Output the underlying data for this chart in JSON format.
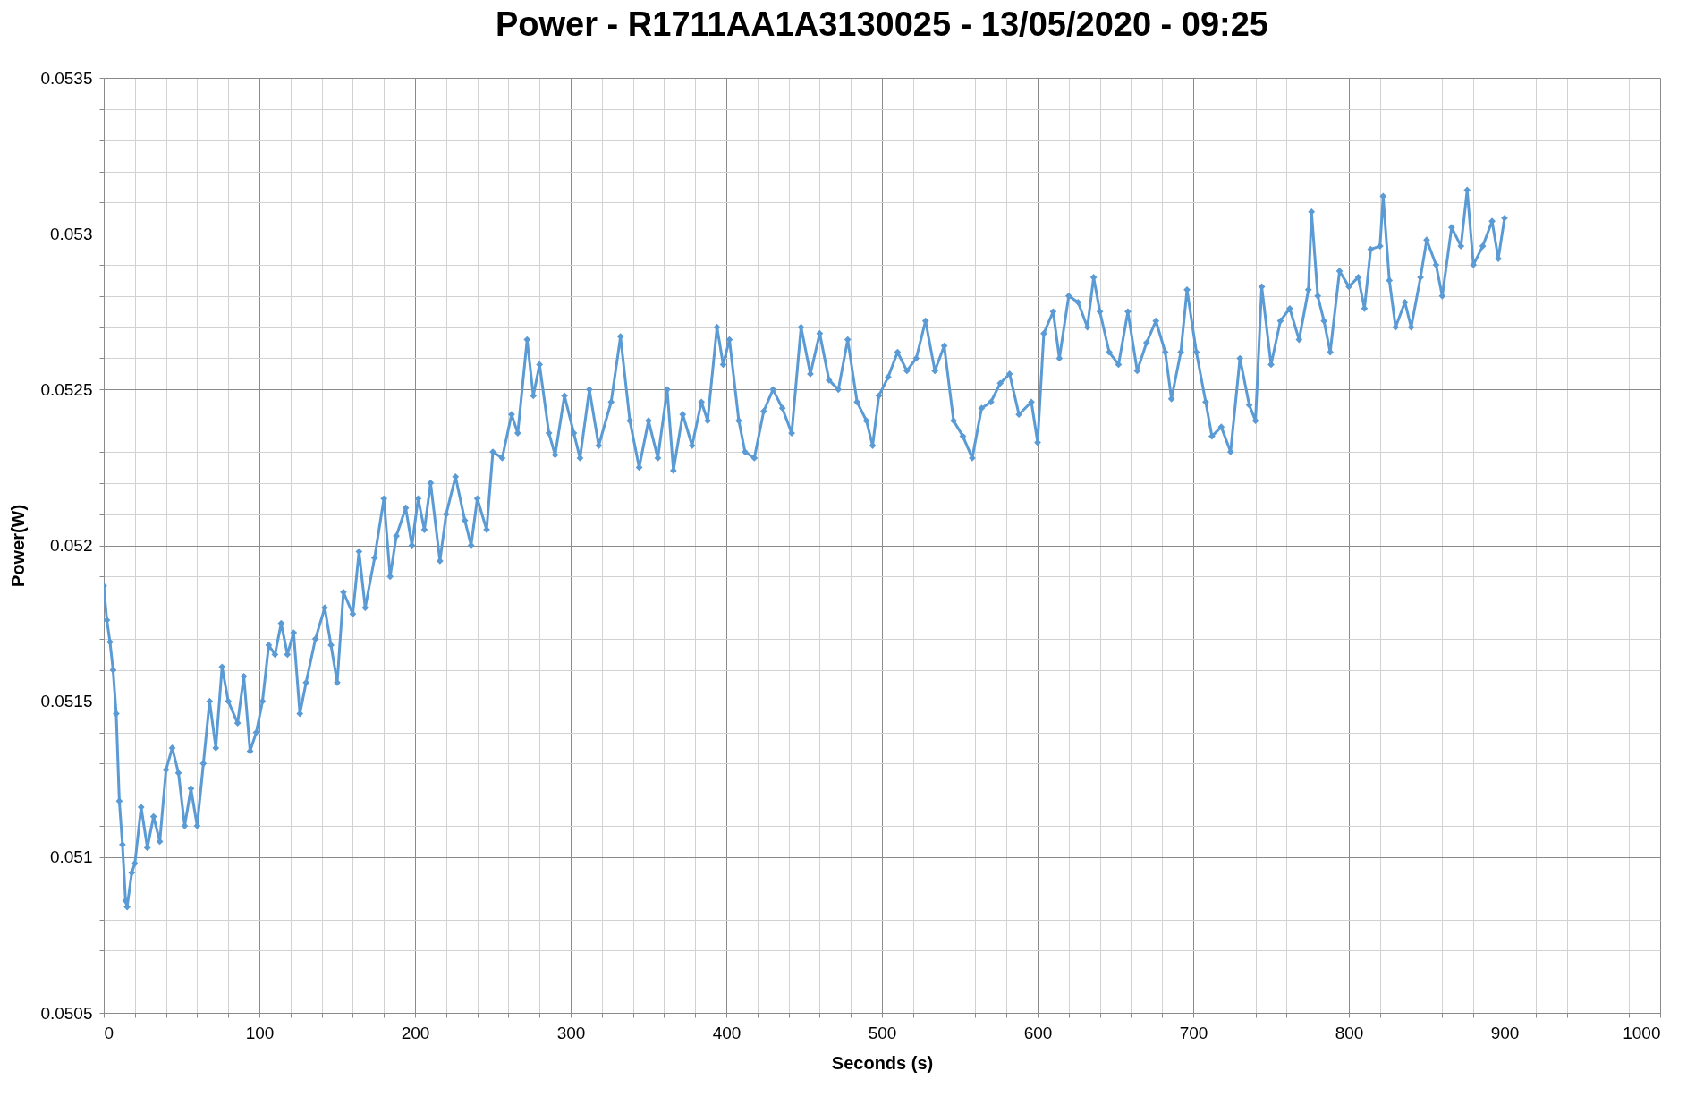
{
  "chart_data": {
    "type": "line",
    "title": "Power - R1711AA1A3130025 - 13/05/2020 - 09:25",
    "xlabel": "Seconds (s)",
    "ylabel": "Power(W)",
    "xlim": [
      0,
      1000
    ],
    "ylim": [
      0.0505,
      0.0535
    ],
    "xticks": [
      0,
      {
        "value": 20,
        "label": null
      },
      {
        "value": 40,
        "label": null
      },
      {
        "value": 60,
        "label": null
      },
      {
        "value": 80,
        "label": null
      },
      100,
      {
        "value": 120,
        "label": null
      },
      {
        "value": 140,
        "label": null
      },
      {
        "value": 160,
        "label": null
      },
      {
        "value": 180,
        "label": null
      },
      200,
      {
        "value": 220,
        "label": null
      },
      {
        "value": 240,
        "label": null
      },
      {
        "value": 260,
        "label": null
      },
      {
        "value": 280,
        "label": null
      },
      300,
      {
        "value": 320,
        "label": null
      },
      {
        "value": 340,
        "label": null
      },
      {
        "value": 360,
        "label": null
      },
      {
        "value": 380,
        "label": null
      },
      400,
      {
        "value": 420,
        "label": null
      },
      {
        "value": 440,
        "label": null
      },
      {
        "value": 460,
        "label": null
      },
      {
        "value": 480,
        "label": null
      },
      500,
      {
        "value": 520,
        "label": null
      },
      {
        "value": 540,
        "label": null
      },
      {
        "value": 560,
        "label": null
      },
      {
        "value": 580,
        "label": null
      },
      600,
      {
        "value": 620,
        "label": null
      },
      {
        "value": 640,
        "label": null
      },
      {
        "value": 660,
        "label": null
      },
      {
        "value": 680,
        "label": null
      },
      700,
      {
        "value": 720,
        "label": null
      },
      {
        "value": 740,
        "label": null
      },
      {
        "value": 760,
        "label": null
      },
      {
        "value": 780,
        "label": null
      },
      800,
      {
        "value": 820,
        "label": null
      },
      {
        "value": 840,
        "label": null
      },
      {
        "value": 860,
        "label": null
      },
      {
        "value": 880,
        "label": null
      },
      900,
      {
        "value": 920,
        "label": null
      },
      {
        "value": 940,
        "label": null
      },
      {
        "value": 960,
        "label": null
      },
      {
        "value": 980,
        "label": null
      },
      1000
    ],
    "yticks": [
      0.0505,
      {
        "value": 0.0506,
        "label": null
      },
      {
        "value": 0.0507,
        "label": null
      },
      {
        "value": 0.0508,
        "label": null
      },
      {
        "value": 0.0509,
        "label": null
      },
      0.051,
      {
        "value": 0.0511,
        "label": null
      },
      {
        "value": 0.0512,
        "label": null
      },
      {
        "value": 0.0513,
        "label": null
      },
      {
        "value": 0.0514,
        "label": null
      },
      0.0515,
      {
        "value": 0.0516,
        "label": null
      },
      {
        "value": 0.0517,
        "label": null
      },
      {
        "value": 0.0518,
        "label": null
      },
      {
        "value": 0.0519,
        "label": null
      },
      0.052,
      {
        "value": 0.0521,
        "label": null
      },
      {
        "value": 0.0522,
        "label": null
      },
      {
        "value": 0.0523,
        "label": null
      },
      {
        "value": 0.0524,
        "label": null
      },
      0.0525,
      {
        "value": 0.0526,
        "label": null
      },
      {
        "value": 0.0527,
        "label": null
      },
      {
        "value": 0.0528,
        "label": null
      },
      {
        "value": 0.0529,
        "label": null
      },
      0.053,
      {
        "value": 0.0531,
        "label": null
      },
      {
        "value": 0.0532,
        "label": null
      },
      {
        "value": 0.0533,
        "label": null
      },
      {
        "value": 0.0534,
        "label": null
      },
      0.0535
    ],
    "grid": true,
    "marker": "diamond",
    "line_style": "solid",
    "x": [
      0,
      2,
      4,
      6,
      8,
      10,
      12,
      14,
      15,
      18,
      20,
      24,
      28,
      32,
      36,
      40,
      44,
      48,
      52,
      56,
      60,
      64,
      68,
      72,
      76,
      80,
      86,
      90,
      94,
      98,
      102,
      106,
      110,
      114,
      118,
      122,
      126,
      130,
      136,
      142,
      146,
      150,
      154,
      160,
      164,
      168,
      174,
      180,
      184,
      188,
      194,
      198,
      202,
      206,
      210,
      216,
      220,
      226,
      232,
      236,
      240,
      246,
      250,
      256,
      262,
      266,
      272,
      276,
      280,
      286,
      290,
      296,
      302,
      306,
      312,
      318,
      326,
      332,
      338,
      344,
      350,
      356,
      362,
      366,
      372,
      378,
      384,
      388,
      394,
      398,
      402,
      408,
      412,
      418,
      424,
      430,
      436,
      442,
      448,
      454,
      460,
      466,
      472,
      478,
      484,
      490,
      494,
      498,
      504,
      510,
      516,
      522,
      528,
      534,
      540,
      546,
      552,
      558,
      564,
      570,
      576,
      582,
      588,
      596,
      600,
      604,
      610,
      614,
      620,
      626,
      632,
      636,
      640,
      646,
      652,
      658,
      664,
      670,
      676,
      682,
      686,
      692,
      696,
      702,
      708,
      712,
      718,
      724,
      730,
      736,
      740,
      744,
      750,
      756,
      762,
      768,
      774,
      776,
      780,
      784,
      788,
      794,
      800,
      806,
      810,
      814,
      820,
      822,
      826,
      830,
      836,
      840,
      846,
      850,
      856,
      860,
      866,
      872,
      876,
      880,
      886,
      892,
      896,
      900
    ],
    "series": [
      {
        "color": "#5b9bd5",
        "values": [
          0.05187,
          0.05176,
          0.05169,
          0.0516,
          0.05146,
          0.05118,
          0.05104,
          0.05086,
          0.05084,
          0.05095,
          0.05098,
          0.05116,
          0.05103,
          0.05113,
          0.05105,
          0.05128,
          0.05135,
          0.05127,
          0.0511,
          0.05122,
          0.0511,
          0.0513,
          0.0515,
          0.05135,
          0.05161,
          0.0515,
          0.05143,
          0.05158,
          0.05134,
          0.0514,
          0.0515,
          0.05168,
          0.05165,
          0.05175,
          0.05165,
          0.05172,
          0.05146,
          0.05156,
          0.0517,
          0.0518,
          0.05168,
          0.05156,
          0.05185,
          0.05178,
          0.05198,
          0.0518,
          0.05196,
          0.05215,
          0.0519,
          0.05203,
          0.05212,
          0.052,
          0.05215,
          0.05205,
          0.0522,
          0.05195,
          0.0521,
          0.05222,
          0.05208,
          0.052,
          0.05215,
          0.05205,
          0.0523,
          0.05228,
          0.05242,
          0.05236,
          0.05266,
          0.05248,
          0.05258,
          0.05236,
          0.05229,
          0.05248,
          0.05236,
          0.05228,
          0.0525,
          0.05232,
          0.05246,
          0.05267,
          0.0524,
          0.05225,
          0.0524,
          0.05228,
          0.0525,
          0.05224,
          0.05242,
          0.05232,
          0.05246,
          0.0524,
          0.0527,
          0.05258,
          0.05266,
          0.0524,
          0.0523,
          0.05228,
          0.05243,
          0.0525,
          0.05244,
          0.05236,
          0.0527,
          0.05255,
          0.05268,
          0.05253,
          0.0525,
          0.05266,
          0.05246,
          0.0524,
          0.05232,
          0.05248,
          0.05254,
          0.05262,
          0.05256,
          0.0526,
          0.05272,
          0.05256,
          0.05264,
          0.0524,
          0.05235,
          0.05228,
          0.05244,
          0.05246,
          0.05252,
          0.05255,
          0.05242,
          0.05246,
          0.05233,
          0.05268,
          0.05275,
          0.0526,
          0.0528,
          0.05278,
          0.0527,
          0.05286,
          0.05275,
          0.05262,
          0.05258,
          0.05275,
          0.05256,
          0.05265,
          0.05272,
          0.05262,
          0.05247,
          0.05262,
          0.05282,
          0.05262,
          0.05246,
          0.05235,
          0.05238,
          0.0523,
          0.0526,
          0.05245,
          0.0524,
          0.05283,
          0.05258,
          0.05272,
          0.05276,
          0.05266,
          0.05282,
          0.05307,
          0.0528,
          0.05272,
          0.05262,
          0.05288,
          0.05283,
          0.05286,
          0.05276,
          0.05295,
          0.05296,
          0.05312,
          0.05285,
          0.0527,
          0.05278,
          0.0527,
          0.05286,
          0.05298,
          0.0529,
          0.0528,
          0.05302,
          0.05296,
          0.05314,
          0.0529,
          0.05296,
          0.05304,
          0.05292,
          0.05305
        ]
      }
    ]
  }
}
